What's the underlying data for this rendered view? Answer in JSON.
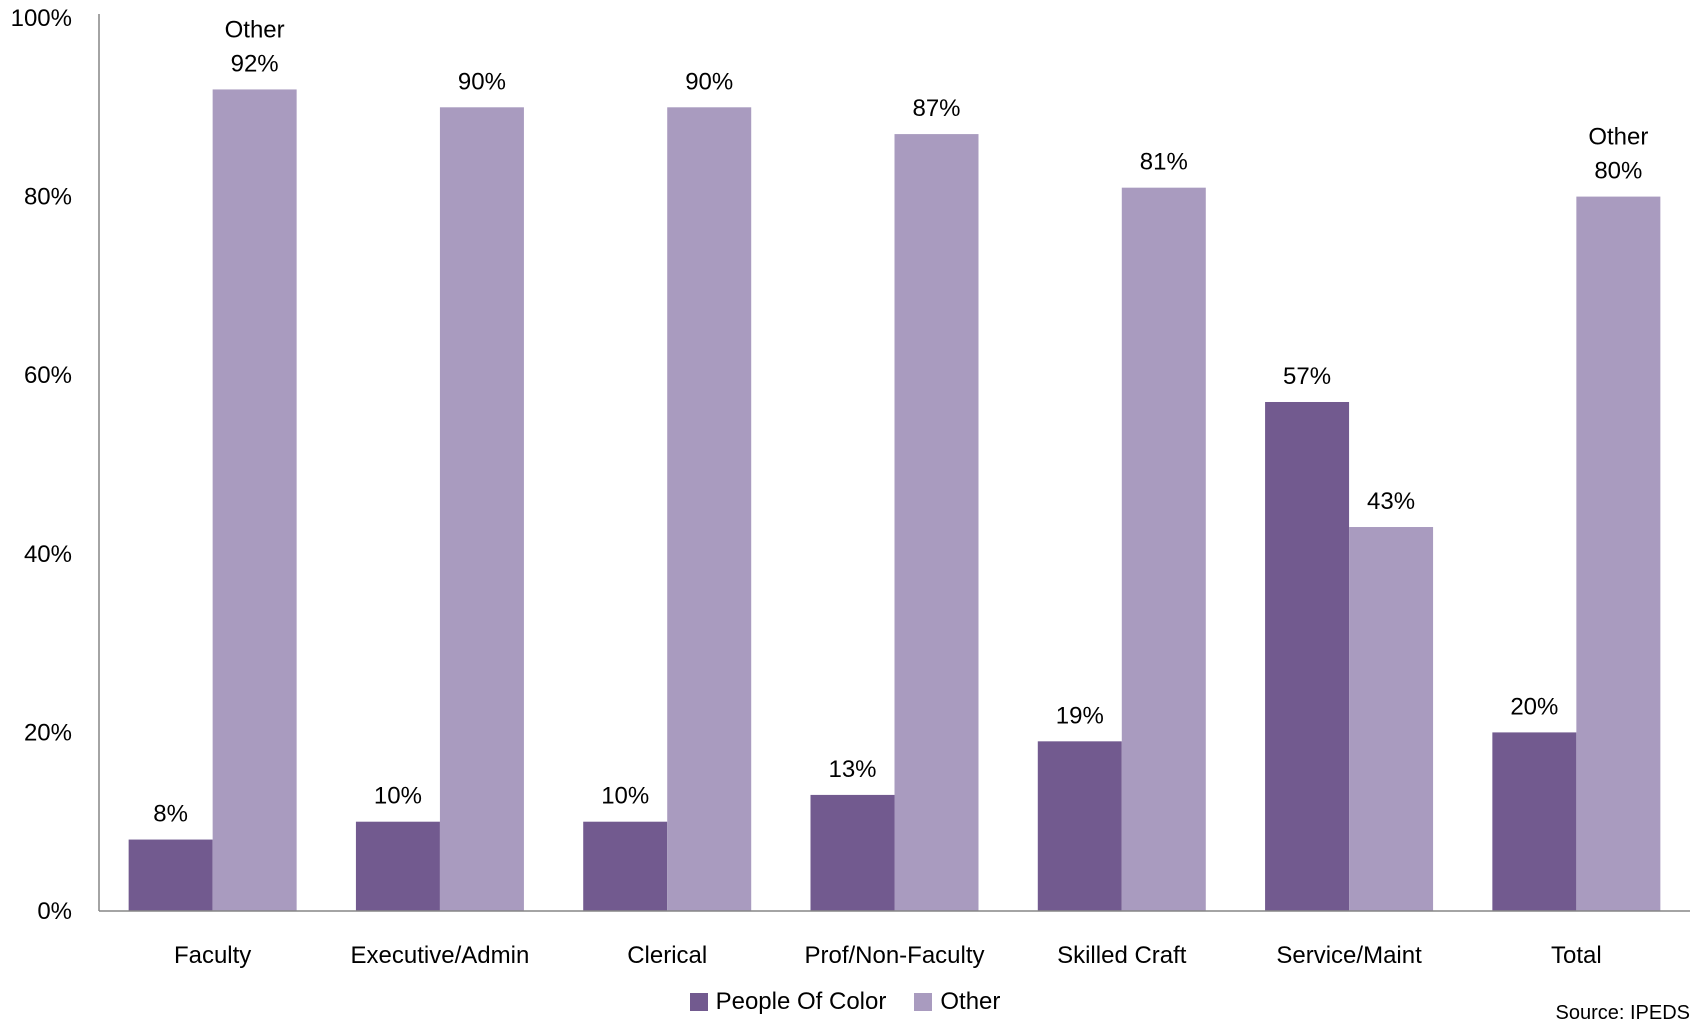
{
  "chart_data": {
    "type": "bar",
    "categories": [
      "Faculty",
      "Executive/Admin",
      "Clerical",
      "Prof/Non-Faculty",
      "Skilled Craft",
      "Service/Maint",
      "Total"
    ],
    "series": [
      {
        "name": "People Of Color",
        "values": [
          8,
          10,
          10,
          13,
          19,
          57,
          20
        ],
        "labels": [
          "8%",
          "10%",
          "10%",
          "13%",
          "19%",
          "57%",
          "20%"
        ],
        "color": "#725a8f"
      },
      {
        "name": "Other",
        "values": [
          92,
          90,
          90,
          87,
          81,
          43,
          80
        ],
        "labels": [
          "92%",
          "90%",
          "90%",
          "87%",
          "81%",
          "43%",
          "80%"
        ],
        "label_prefix": [
          "Other",
          "",
          "",
          "",
          "",
          "",
          "Other"
        ],
        "color": "#a99bbf"
      }
    ],
    "ylim": [
      0,
      100
    ],
    "y_ticks": [
      "0%",
      "20%",
      "40%",
      "60%",
      "80%",
      "100%"
    ],
    "legend_position": "bottom",
    "grid": false
  },
  "source_text": "Source: IPEDS"
}
